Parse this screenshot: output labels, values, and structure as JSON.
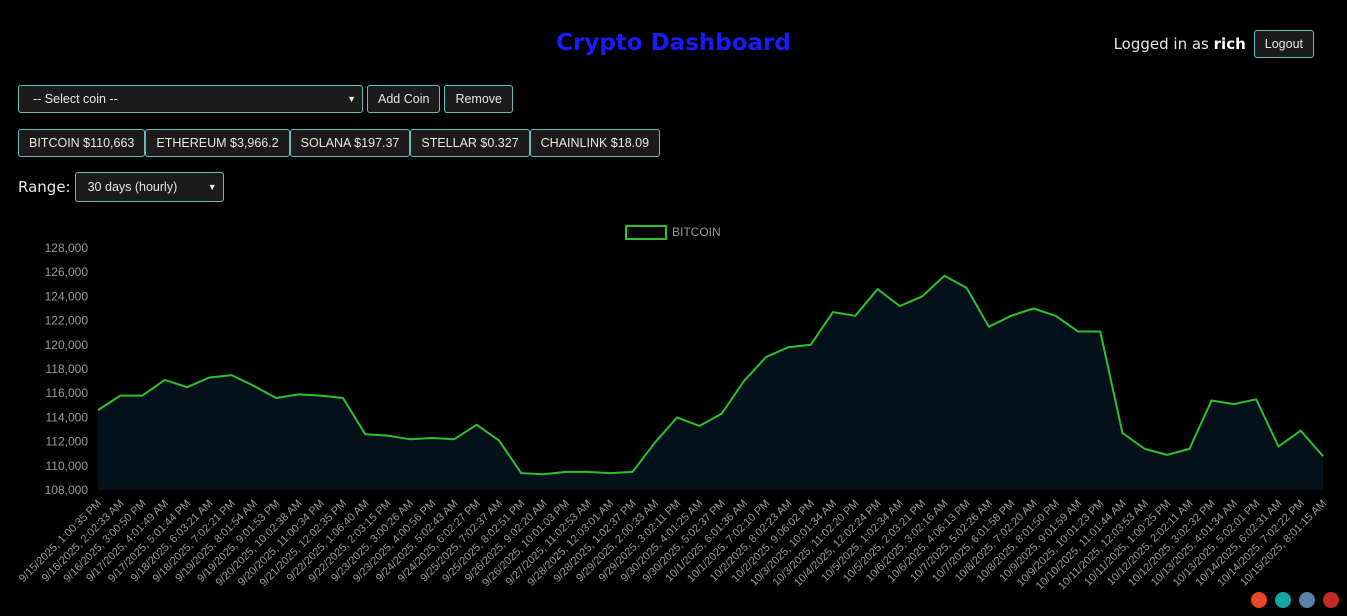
{
  "header": {
    "title": "Crypto Dashboard",
    "logged_in_prefix": "Logged in as",
    "username": "rich",
    "logout_label": "Logout"
  },
  "coin_select": {
    "selected": "-- Select coin --"
  },
  "controls": {
    "add_label": "Add Coin",
    "remove_label": "Remove"
  },
  "coins": [
    {
      "label": "BITCOIN $110,663"
    },
    {
      "label": "ETHEREUM $3,966.2"
    },
    {
      "label": "SOLANA $197.37"
    },
    {
      "label": "STELLAR $0.327"
    },
    {
      "label": "CHAINLINK $18.09"
    }
  ],
  "range": {
    "label": "Range:",
    "selected": "30 days (hourly)"
  },
  "footer_icons": [
    "svelte-icon",
    "tailwind-icon",
    "postgres-icon",
    "rust-icon"
  ],
  "colors": {
    "title": "#1a1aff",
    "line": "#2fbf2f",
    "fill": "#04111a",
    "button_border": "#5fbfbf"
  },
  "chart_data": {
    "type": "area",
    "legend": [
      "BITCOIN"
    ],
    "legend_position": "top-center",
    "ylim": [
      108000,
      128000
    ],
    "yticks": [
      108000,
      110000,
      112000,
      114000,
      116000,
      118000,
      120000,
      122000,
      124000,
      126000,
      128000
    ],
    "grid": false,
    "x": [
      "9/15/2025, 1:00:35 PM",
      "9/16/2025, 2:02:33 AM",
      "9/16/2025, 3:00:50 PM",
      "9/17/2025, 4:01:49 AM",
      "9/17/2025, 5:01:44 PM",
      "9/18/2025, 6:03:21 AM",
      "9/18/2025, 7:02:21 PM",
      "9/19/2025, 8:01:54 AM",
      "9/19/2025, 9:01:53 PM",
      "9/20/2025, 10:02:38 AM",
      "9/20/2025, 11:00:34 PM",
      "9/21/2025, 12:02:35 PM",
      "9/22/2025, 1:06:40 AM",
      "9/22/2025, 2:03:15 PM",
      "9/23/2025, 3:00:26 AM",
      "9/23/2025, 4:00:56 PM",
      "9/24/2025, 5:02:43 AM",
      "9/24/2025, 6:02:27 PM",
      "9/25/2025, 7:02:37 AM",
      "9/25/2025, 8:02:51 PM",
      "9/26/2025, 9:02:20 AM",
      "9/26/2025, 10:01:03 PM",
      "9/27/2025, 11:02:53 AM",
      "9/28/2025, 12:03:01 AM",
      "9/28/2025, 1:02:37 PM",
      "9/29/2025, 2:00:33 AM",
      "9/29/2025, 3:02:11 PM",
      "9/30/2025, 4:01:25 AM",
      "9/30/2025, 5:02:37 PM",
      "10/1/2025, 6:01:36 AM",
      "10/1/2025, 7:02:10 PM",
      "10/2/2025, 8:02:23 AM",
      "10/2/2025, 9:06:02 PM",
      "10/3/2025, 10:01:34 AM",
      "10/3/2025, 11:02:20 PM",
      "10/4/2025, 12:02:24 PM",
      "10/5/2025, 1:02:34 AM",
      "10/5/2025, 2:03:21 PM",
      "10/6/2025, 3:02:16 AM",
      "10/6/2025, 4:06:13 PM",
      "10/7/2025, 5:02:26 AM",
      "10/7/2025, 6:01:58 PM",
      "10/8/2025, 7:02:20 AM",
      "10/8/2025, 8:01:50 PM",
      "10/9/2025, 9:01:59 AM",
      "10/9/2025, 10:01:23 PM",
      "10/10/2025, 11:01:44 AM",
      "10/11/2025, 12:03:53 AM",
      "10/11/2025, 1:00:25 PM",
      "10/12/2025, 2:02:11 AM",
      "10/12/2025, 3:02:32 PM",
      "10/13/2025, 4:01:34 AM",
      "10/13/2025, 5:02:01 PM",
      "10/14/2025, 6:02:31 AM",
      "10/14/2025, 7:02:22 PM",
      "10/15/2025, 8:01:15 AM"
    ],
    "series": [
      {
        "name": "BITCOIN",
        "values": [
          114600,
          115800,
          115800,
          117100,
          116500,
          117300,
          117500,
          116600,
          115600,
          115900,
          115800,
          115600,
          112600,
          112500,
          112200,
          112300,
          112200,
          113400,
          112100,
          109400,
          109300,
          109500,
          109500,
          109400,
          109500,
          111900,
          114000,
          113300,
          114300,
          117000,
          119000,
          119800,
          120000,
          122700,
          122400,
          124600,
          123200,
          124000,
          125700,
          124700,
          121500,
          122400,
          123000,
          122400,
          121100,
          121100,
          112700,
          111400,
          110900,
          111400,
          115400,
          115100,
          115500,
          111600,
          112900,
          110800
        ]
      }
    ]
  }
}
